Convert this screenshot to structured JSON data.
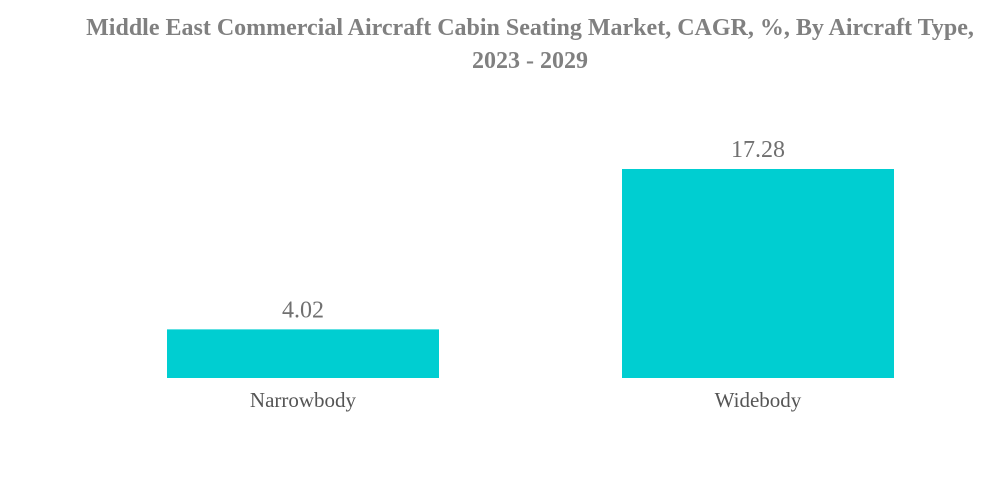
{
  "chart_data": {
    "type": "bar",
    "title": "Middle East Commercial Aircraft Cabin Seating Market, CAGR, %, By Aircraft Type, 2023 - 2029",
    "categories": [
      "Narrowbody",
      "Widebody"
    ],
    "values": [
      4.02,
      17.28
    ],
    "value_labels": [
      "4.02",
      "17.28"
    ],
    "xlabel": "",
    "ylabel": "",
    "grid": false,
    "legend": "none",
    "bar_color": "#00CED1"
  }
}
